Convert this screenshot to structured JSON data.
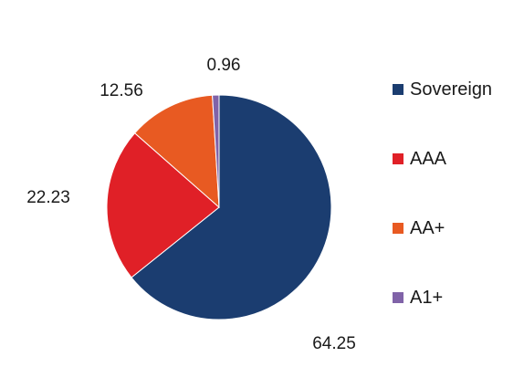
{
  "chart_data": {
    "type": "pie",
    "categories": [
      "Sovereign",
      "AAA",
      "AA+",
      "A1+"
    ],
    "values": [
      64.25,
      22.23,
      12.56,
      0.96
    ],
    "colors": [
      "#1b3d70",
      "#e02027",
      "#e85a22",
      "#8063a8"
    ],
    "data_labels": [
      "64.25",
      "22.23",
      "12.56",
      "0.96"
    ],
    "start": "12 o'clock",
    "direction": "clockwise",
    "legend_placement": "right"
  }
}
